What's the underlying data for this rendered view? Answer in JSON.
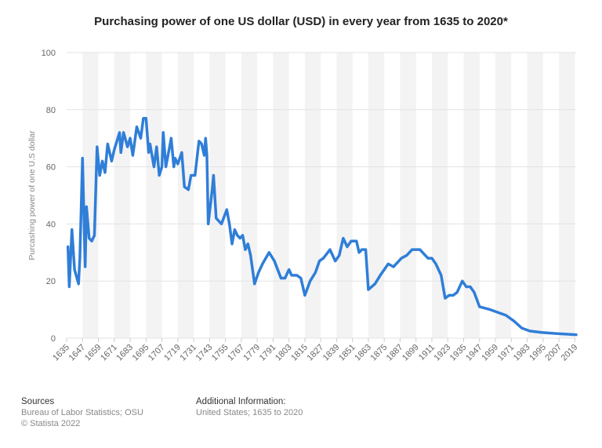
{
  "chart_data": {
    "type": "line",
    "title": "Purchasing power of one US dollar (USD) in every year from 1635 to 2020*",
    "y_label": "Purcashing power of one U.S dollar",
    "x": [
      1636,
      1637,
      1639,
      1641,
      1644,
      1645,
      1647,
      1649,
      1650,
      1652,
      1654,
      1656,
      1658,
      1660,
      1662,
      1664,
      1666,
      1669,
      1671,
      1675,
      1676,
      1678,
      1681,
      1683,
      1685,
      1688,
      1691,
      1693,
      1695,
      1697,
      1698,
      1701,
      1703,
      1705,
      1707,
      1708,
      1710,
      1712,
      1714,
      1716,
      1717,
      1719,
      1722,
      1724,
      1727,
      1729,
      1732,
      1735,
      1737,
      1739,
      1740,
      1741,
      1742,
      1745,
      1746,
      1748,
      1752,
      1756,
      1758,
      1760,
      1762,
      1764,
      1766,
      1768,
      1770,
      1772,
      1774,
      1777,
      1780,
      1783,
      1788,
      1792,
      1797,
      1800,
      1803,
      1805,
      1809,
      1812,
      1815,
      1819,
      1823,
      1826,
      1829,
      1834,
      1838,
      1841,
      1844,
      1847,
      1850,
      1854,
      1856,
      1858,
      1861,
      1863,
      1868,
      1872,
      1878,
      1882,
      1888,
      1892,
      1896,
      1902,
      1908,
      1911,
      1914,
      1918,
      1921,
      1924,
      1927,
      1930,
      1934,
      1937,
      1940,
      1943,
      1947,
      1955,
      1961,
      1967,
      1973,
      1979,
      1985,
      1994,
      2005,
      2020
    ],
    "series": [
      {
        "name": "Purchasing power",
        "color": "#2f7ed8",
        "values": [
          32,
          18,
          38,
          24,
          19,
          28,
          63,
          25,
          46,
          35,
          34,
          36,
          67,
          57,
          62,
          58,
          68,
          62,
          66,
          72,
          65,
          72,
          67,
          70,
          64,
          74,
          70,
          77,
          77,
          65,
          68,
          60,
          67,
          57,
          60,
          72,
          60,
          65,
          70,
          60,
          63,
          61,
          65,
          53,
          52,
          57,
          57,
          69,
          68,
          64,
          70,
          64,
          40,
          52,
          57,
          42,
          40,
          45,
          40,
          33,
          38,
          36,
          35,
          36,
          31,
          33,
          29,
          19,
          23,
          26,
          30,
          27,
          21,
          21,
          24,
          22,
          22,
          21,
          15,
          20,
          23,
          27,
          28,
          31,
          27,
          29,
          35,
          32,
          34,
          34,
          30,
          31,
          31,
          17,
          19,
          22,
          26,
          25,
          28,
          29,
          31,
          31,
          28,
          28,
          26,
          22,
          14,
          15,
          15,
          16,
          20,
          18,
          18,
          16,
          11,
          10,
          9,
          8,
          6,
          3.5,
          2.5,
          2,
          1.6,
          1.2
        ]
      }
    ],
    "xlim": [
      1635,
      2020
    ],
    "xticks": [
      1635,
      1647,
      1659,
      1671,
      1683,
      1695,
      1707,
      1719,
      1731,
      1743,
      1755,
      1767,
      1779,
      1791,
      1803,
      1815,
      1827,
      1839,
      1851,
      1863,
      1875,
      1887,
      1899,
      1911,
      1923,
      1935,
      1947,
      1959,
      1971,
      1983,
      1995,
      2007,
      2019
    ],
    "ylim": [
      0,
      100
    ],
    "yticks": [
      0,
      20,
      40,
      60,
      80,
      100
    ],
    "grid": true
  },
  "footer": {
    "sources_title": "Sources",
    "sources": "Bureau of Labor Statistics; OSU",
    "copyright": "© Statista 2022",
    "info_title": "Additional Information:",
    "info": "United States; 1635 to 2020"
  }
}
